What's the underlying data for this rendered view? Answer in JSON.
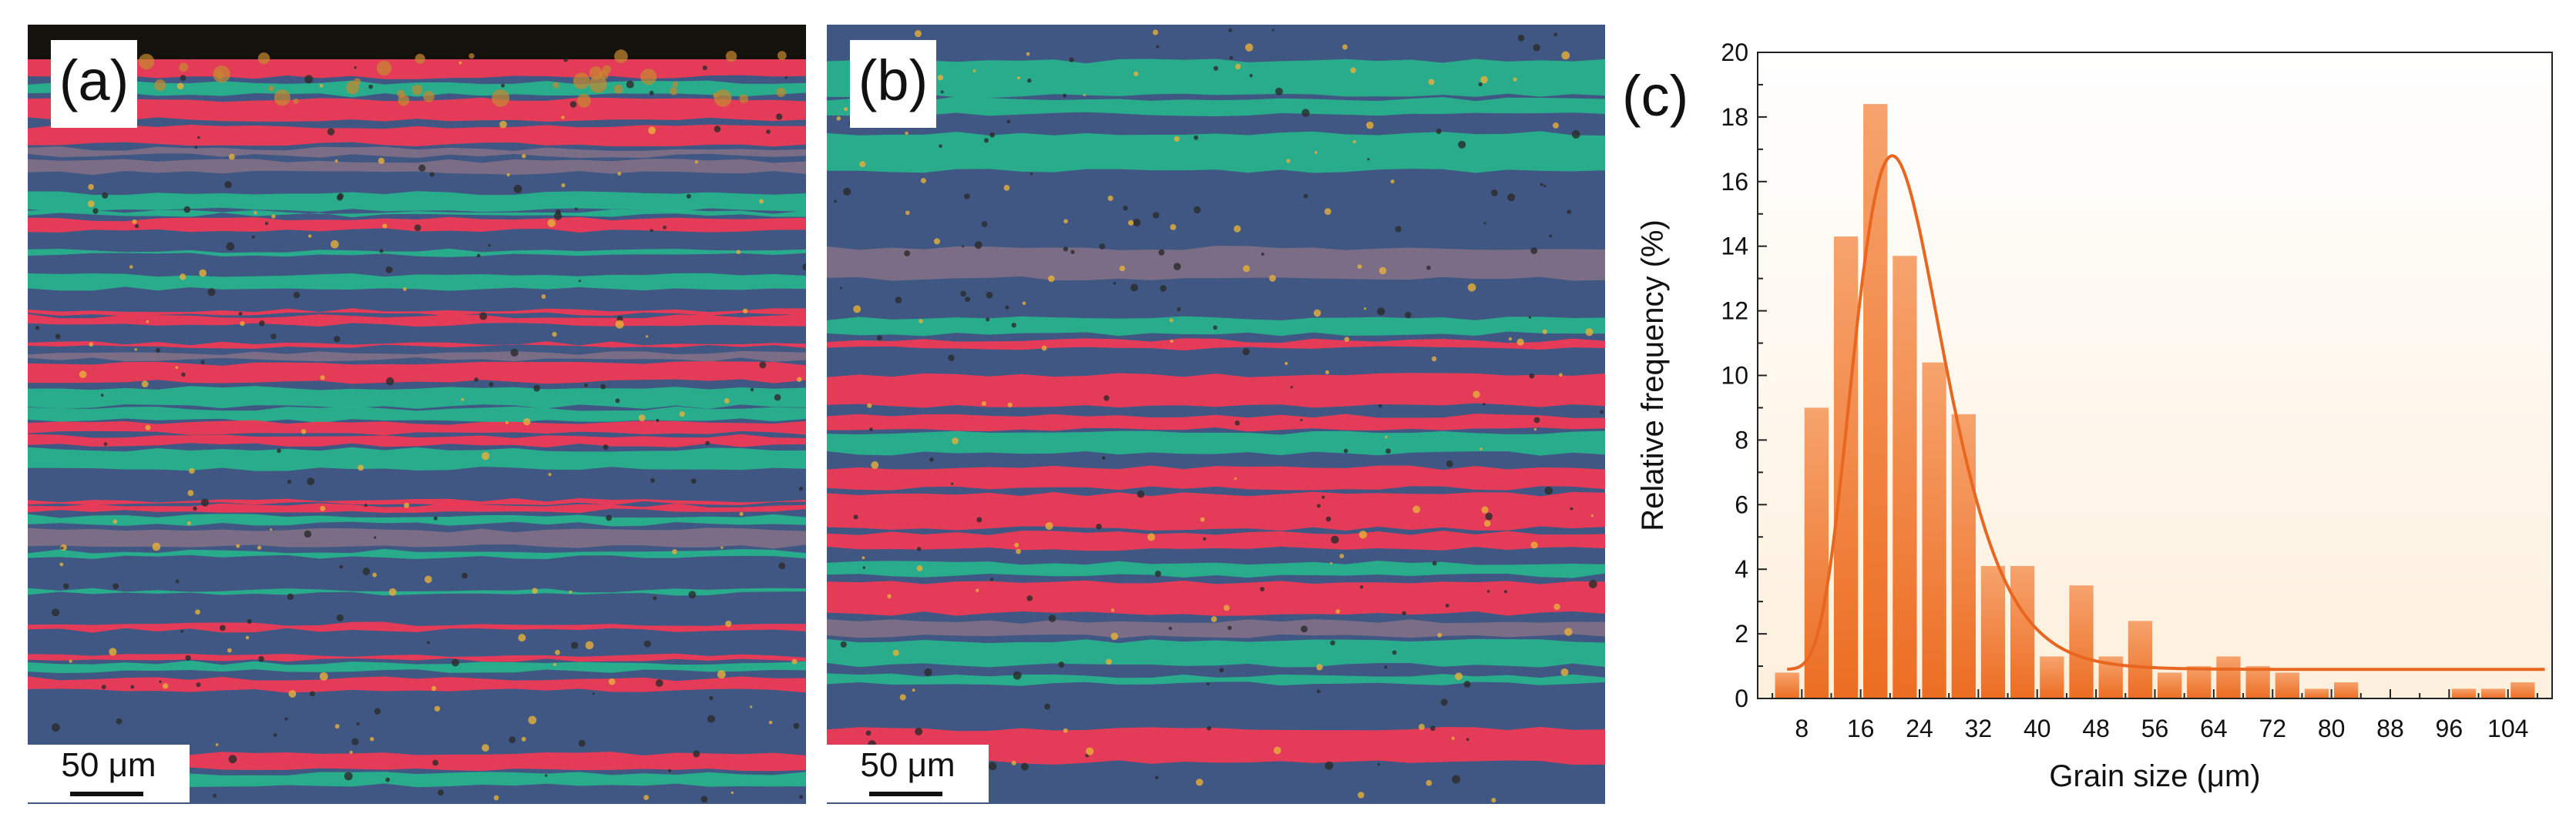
{
  "panels": {
    "a": {
      "label": "(a)",
      "scale_text": "50 μm"
    },
    "b": {
      "label": "(b)",
      "scale_text": "50 μm"
    },
    "c": {
      "label": "(c)"
    }
  },
  "colors": {
    "red_band": "#f23a55",
    "teal_band": "#27b38c",
    "blue_matrix": "#3f5782",
    "bar_fill": "#f08a4b",
    "fit_curve": "#e8661f",
    "plot_bg_bottom": "#fdf0dd"
  },
  "chart_data": {
    "type": "bar",
    "xlabel": "Grain size (μm)",
    "ylabel": "Relative frequency (%)",
    "xlim": [
      2,
      110
    ],
    "ylim": [
      0,
      20
    ],
    "xticks": [
      8,
      16,
      24,
      32,
      40,
      48,
      56,
      64,
      72,
      80,
      88,
      96,
      104
    ],
    "yticks": [
      0,
      2,
      4,
      6,
      8,
      10,
      12,
      14,
      16,
      18,
      20
    ],
    "bin_width": 4,
    "bins": [
      6,
      10,
      14,
      18,
      22,
      26,
      30,
      34,
      38,
      42,
      46,
      50,
      54,
      58,
      62,
      66,
      70,
      74,
      78,
      82,
      86,
      90,
      94,
      98,
      102,
      106
    ],
    "values": [
      0.8,
      9.0,
      14.3,
      18.4,
      13.7,
      10.4,
      8.8,
      4.1,
      4.1,
      1.3,
      3.5,
      1.3,
      2.4,
      0.8,
      1.0,
      1.3,
      1.0,
      0.8,
      0.3,
      0.5,
      0,
      0,
      0,
      0.3,
      0.3,
      0.5
    ],
    "fit": {
      "type": "lognormal",
      "y0": 0.9,
      "A": 15.9,
      "xc": 20.3,
      "w": 0.3,
      "x_range": [
        6,
        109
      ]
    },
    "grid": false,
    "legend": "none"
  }
}
